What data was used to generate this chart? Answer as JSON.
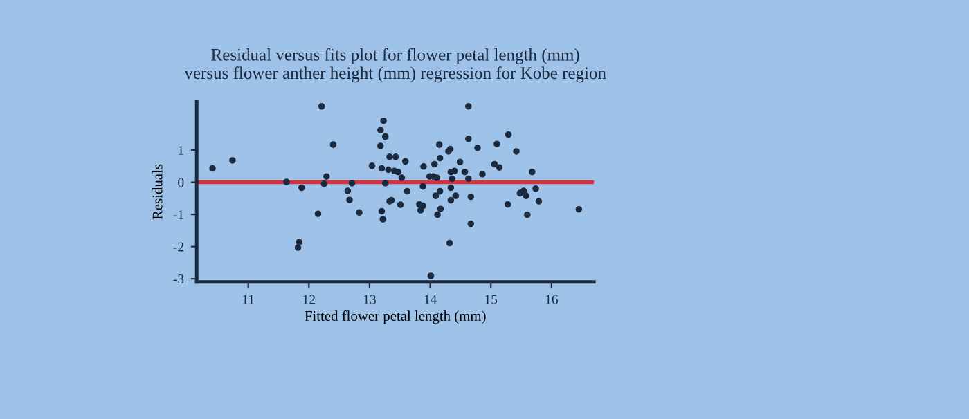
{
  "chart_data": {
    "type": "scatter",
    "title": "Residual versus fits plot for flower petal length (mm)\nversus flower anther height (mm) regression for Kobe region",
    "xlabel": "Fitted flower petal length (mm)",
    "ylabel": "Residuals",
    "series": [
      {
        "color": "#1c2a40",
        "x": [
          10.41,
          10.74,
          12.21,
          12.4,
          11.63,
          11.88,
          12.25,
          12.29,
          12.15,
          11.84,
          11.82,
          12.64,
          12.67,
          12.71,
          12.83,
          13.04,
          13.2,
          13.23,
          13.18,
          13.26,
          13.18,
          13.2,
          13.22,
          13.33,
          13.31,
          13.26,
          13.33,
          13.43,
          13.59,
          13.41,
          13.47,
          13.53,
          13.36,
          13.51,
          13.62,
          13.89,
          14.07,
          14.15,
          14.16,
          14.3,
          14.33,
          14.05,
          14.11,
          13.99,
          13.88,
          14.09,
          14.16,
          13.82,
          13.88,
          13.84,
          14.17,
          14.12,
          14.01,
          14.32,
          14.34,
          14.42,
          14.34,
          14.34,
          14.4,
          14.36,
          14.49,
          14.57,
          14.63,
          14.63,
          14.63,
          14.67,
          14.67,
          14.78,
          14.86,
          15.1,
          15.06,
          15.14,
          15.29,
          15.42,
          15.28,
          15.68,
          15.48,
          15.54,
          15.58,
          15.74,
          15.79,
          15.6,
          16.45
        ],
        "values": [
          0.43,
          0.68,
          2.36,
          1.17,
          0.01,
          -0.17,
          -0.05,
          0.18,
          -0.98,
          -1.86,
          -2.03,
          -0.27,
          -0.55,
          -0.03,
          -0.94,
          0.51,
          0.43,
          1.91,
          1.62,
          1.42,
          1.13,
          -0.9,
          -1.15,
          0.79,
          0.39,
          -0.03,
          -0.59,
          0.79,
          0.65,
          0.35,
          0.32,
          0.14,
          -0.56,
          -0.7,
          -0.28,
          0.49,
          0.56,
          1.17,
          0.75,
          0.96,
          1.03,
          0.18,
          0.14,
          0.18,
          -0.13,
          -0.42,
          -0.28,
          -0.69,
          -0.73,
          -0.87,
          -0.83,
          -1.01,
          -2.91,
          -1.89,
          -0.56,
          -0.42,
          -0.17,
          0.32,
          0.35,
          0.11,
          0.63,
          0.32,
          0.11,
          2.36,
          1.35,
          -1.29,
          -0.45,
          1.07,
          0.25,
          1.19,
          0.56,
          0.46,
          1.48,
          0.96,
          -0.69,
          0.32,
          -0.34,
          -0.27,
          -0.42,
          -0.2,
          -0.59,
          -1.01,
          -0.84
        ]
      }
    ],
    "marker": "circle",
    "ref_lines": [
      {
        "axis": "y",
        "value": 0,
        "color": "#d8303c"
      }
    ],
    "xlim": [
      10.15,
      16.7
    ],
    "ylim": [
      -3.1,
      2.5
    ],
    "xticks": [
      11,
      12,
      13,
      14,
      15,
      16
    ],
    "yticks": [
      -3,
      -2,
      -1,
      0,
      1
    ],
    "grid": false,
    "legend": false
  }
}
